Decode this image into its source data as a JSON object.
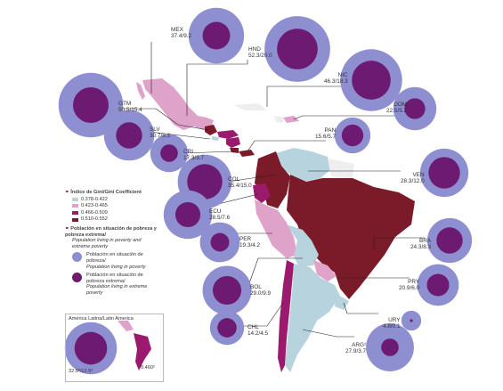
{
  "legend": {
    "gini_title": "Índice de Gini/Gini Coefficient",
    "gini_classes": [
      {
        "label": "0.378-0.422",
        "color": "#b7d3de"
      },
      {
        "label": "0.423-0.465",
        "color": "#dfa2c8"
      },
      {
        "label": "0.466-0.509",
        "color": "#9c1a6e"
      },
      {
        "label": "0.510-0.552",
        "color": "#7b1a28"
      }
    ],
    "poverty_title": "Población en situación de pobreza y pobreza extrema/",
    "poverty_subtitle": "Population living in poverty and extreme poverty",
    "poverty_label": "Población en situación de pobreza/",
    "poverty_label_en": "Population living in poverty",
    "extreme_label": "Población en situación de pobreza extrema/",
    "extreme_label_en": "Population living in extreme poverty",
    "poverty_color": "#8e8fd0",
    "extreme_color": "#6c1a72"
  },
  "inset": {
    "title": "América Latina/Latin America",
    "values": "32.9³/12.9³",
    "gini": "0.460²"
  },
  "countries": [
    {
      "code": "MEX",
      "values": "37.4/9.2",
      "poverty": 37.4,
      "extreme": 9.2,
      "gini_class": 1
    },
    {
      "code": "HND",
      "values": "52.3/20.0",
      "poverty": 52.3,
      "extreme": 20.0,
      "gini_class": 3
    },
    {
      "code": "NIC",
      "values": "46.3/18.3",
      "poverty": 46.3,
      "extreme": 18.3,
      "gini_class": 1
    },
    {
      "code": "DOM",
      "values": "22.5/5.2",
      "poverty": 22.5,
      "extreme": 5.2,
      "gini_class": 1
    },
    {
      "code": "GTM",
      "values": "50.5/15.4",
      "poverty": 50.5,
      "extreme": 15.4,
      "gini_class": 3
    },
    {
      "code": "SLV",
      "values": "30.7/8.3",
      "poverty": 30.7,
      "extreme": 8.3,
      "gini_class": 0
    },
    {
      "code": "CRI",
      "values": "17.3/3.7",
      "poverty": 17.3,
      "extreme": 3.7,
      "gini_class": 3
    },
    {
      "code": "PAN",
      "values": "15.6/5.7",
      "poverty": 15.6,
      "extreme": 5.7,
      "gini_class": 3
    },
    {
      "code": "VEN",
      "values": "28.3/12.0",
      "poverty": 28.3,
      "extreme": 12.0,
      "gini_class": 0
    },
    {
      "code": "COL",
      "values": "35.4/15.0",
      "poverty": 35.4,
      "extreme": 15.0,
      "gini_class": 3
    },
    {
      "code": "ECU",
      "values": "28.5/7.6",
      "poverty": 28.5,
      "extreme": 7.6,
      "gini_class": 2
    },
    {
      "code": "PER",
      "values": "19.3/4.2",
      "poverty": 19.3,
      "extreme": 4.2,
      "gini_class": 1
    },
    {
      "code": "BRA",
      "values": "24.3/8.3",
      "poverty": 24.3,
      "extreme": 8.3,
      "gini_class": 3
    },
    {
      "code": "BOL",
      "values": "29.0/9.9",
      "poverty": 29.0,
      "extreme": 9.9,
      "gini_class": 1
    },
    {
      "code": "PRY",
      "values": "20.9/6.0",
      "poverty": 20.9,
      "extreme": 6.0,
      "gini_class": 1
    },
    {
      "code": "CHL",
      "values": "14.2/4.5",
      "poverty": 14.2,
      "extreme": 4.5,
      "gini_class": 2
    },
    {
      "code": "URY",
      "values": "4.8/0.1",
      "poverty": 4.8,
      "extreme": 0.1,
      "gini_class": 0
    },
    {
      "code": "ARG¹",
      "values": "27.9/3.7",
      "poverty": 27.9,
      "extreme": 3.7,
      "gini_class": 0
    }
  ]
}
